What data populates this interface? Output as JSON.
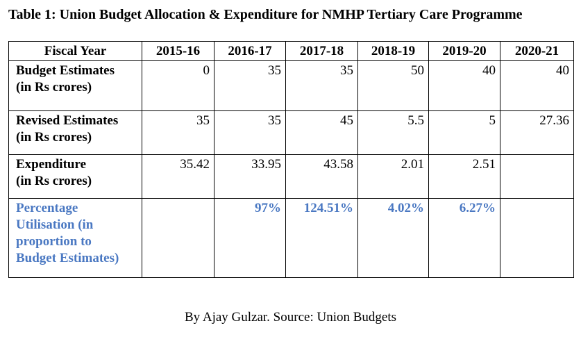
{
  "title": "Table 1: Union Budget Allocation & Expenditure for NMHP Tertiary Care Programme",
  "table": {
    "header_label": "Fiscal Year",
    "years": [
      "2015-16",
      "2016-17",
      "2017-18",
      "2018-19",
      "2019-20",
      "2020-21"
    ],
    "rows": [
      {
        "label_line1": "Budget Estimates",
        "label_line2": "(in Rs crores)",
        "values": [
          "0",
          "35",
          "35",
          "50",
          "40",
          "40"
        ]
      },
      {
        "label_line1": "Revised Estimates",
        "label_line2": "(in Rs crores)",
        "values": [
          "35",
          "35",
          "45",
          "5.5",
          "5",
          "27.36"
        ]
      },
      {
        "label_line1": "Expenditure",
        "label_line2": "(in Rs crores)",
        "values": [
          "35.42",
          "33.95",
          "43.58",
          "2.01",
          "2.51",
          ""
        ]
      }
    ],
    "utilisation": {
      "label_lines": [
        "Percentage",
        "Utilisation (in",
        "proportion to",
        "Budget Estimates)"
      ],
      "values": [
        "",
        "97%",
        "124.51%",
        "4.02%",
        "6.27%",
        ""
      ],
      "color": "#4a78c2"
    }
  },
  "caption": "By Ajay Gulzar. Source: Union Budgets"
}
